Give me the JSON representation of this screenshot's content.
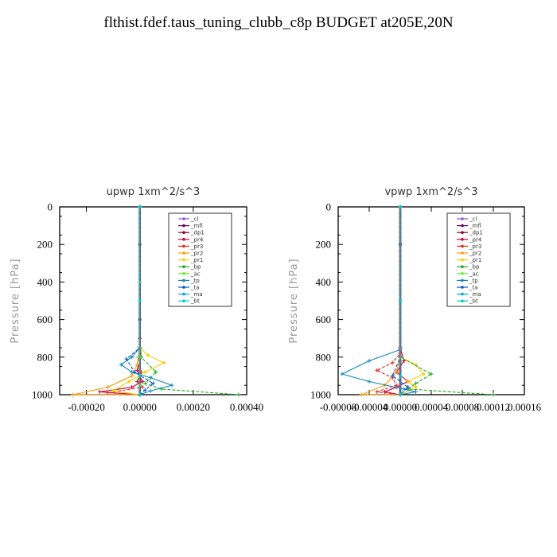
{
  "title": "flthist.fdef.taus_tuning_clubb_c8p  BUDGET at205E,20N",
  "chart_data": [
    {
      "type": "line",
      "title": "upwp   1xm^2/s^3",
      "ylabel": "Pressure [hPa]",
      "ylim": [
        1000,
        0
      ],
      "xlim": [
        -0.0003,
        0.0004
      ],
      "xticks": [
        "-0.00020",
        "0.00000",
        "0.00020",
        "0.00040"
      ],
      "xtick_values": [
        -0.0002,
        0.0,
        0.0002,
        0.0004
      ],
      "yticks": [
        "0",
        "200",
        "400",
        "600",
        "800",
        "1000"
      ],
      "ytick_values": [
        0,
        200,
        400,
        600,
        800,
        1000
      ],
      "legend_position": "top-right",
      "series": [
        {
          "name": "_cl",
          "color": "#9955cc",
          "marker": "circle",
          "x": [
            0,
            0,
            0,
            0,
            0,
            0
          ],
          "y": [
            0,
            200,
            400,
            600,
            800,
            1000
          ]
        },
        {
          "name": "_mfl",
          "color": "#660066",
          "marker": "circle",
          "x": [
            0,
            0,
            0,
            0,
            0,
            0
          ],
          "y": [
            0,
            200,
            400,
            600,
            800,
            1000
          ]
        },
        {
          "name": "_dp1",
          "color": "#880033",
          "marker": "circle",
          "x": [
            0,
            0,
            0,
            0,
            0,
            0
          ],
          "y": [
            0,
            200,
            400,
            600,
            800,
            1000
          ]
        },
        {
          "name": "_pr4",
          "color": "#cc0033",
          "marker": "cross",
          "x": [
            0,
            0,
            5e-06,
            -1e-05,
            1e-05,
            -3e-05,
            -0.00015,
            0
          ],
          "y": [
            0,
            700,
            800,
            870,
            930,
            960,
            985,
            1000
          ]
        },
        {
          "name": "_pr3",
          "color": "#ee2222",
          "marker": "star",
          "x": [
            0,
            0,
            -5e-06,
            5e-06,
            -1e-05,
            1e-05,
            -0.00012,
            0
          ],
          "y": [
            0,
            700,
            800,
            880,
            930,
            960,
            990,
            1000
          ]
        },
        {
          "name": "_pr2",
          "color": "#ff9900",
          "marker": "star",
          "x": [
            0,
            0,
            -1e-05,
            -3e-05,
            -0.00012,
            -0.00025,
            0
          ],
          "y": [
            0,
            750,
            840,
            900,
            960,
            1000,
            1000
          ]
        },
        {
          "name": "_pr1",
          "color": "#ffcc00",
          "marker": "circle",
          "x": [
            0,
            0,
            3e-05,
            9e-05,
            2e-05,
            -4e-05,
            -0.0001,
            0
          ],
          "y": [
            0,
            750,
            790,
            830,
            880,
            930,
            980,
            1000
          ]
        },
        {
          "name": "_bp",
          "color": "#22aa22",
          "marker": "cross",
          "x": [
            0,
            0,
            5e-06,
            6e-05,
            2e-05,
            8e-05,
            0.00037
          ],
          "y": [
            0,
            750,
            800,
            880,
            940,
            970,
            1000
          ]
        },
        {
          "name": "_ac",
          "color": "#66ee33",
          "marker": "circle",
          "x": [
            0,
            0,
            0,
            0,
            0
          ],
          "y": [
            0,
            400,
            800,
            950,
            1000
          ]
        },
        {
          "name": "_tp",
          "color": "#1188bb",
          "marker": "star",
          "x": [
            0,
            0,
            -3e-05,
            -7e-05,
            -3e-05,
            4e-05,
            0.00012,
            4e-05,
            0
          ],
          "y": [
            0,
            750,
            800,
            840,
            880,
            910,
            950,
            980,
            1000
          ]
        },
        {
          "name": "_ta",
          "color": "#0055cc",
          "marker": "star",
          "x": [
            0,
            0,
            -5e-05,
            -2e-05,
            5e-05,
            2e-05,
            0
          ],
          "y": [
            0,
            750,
            810,
            880,
            940,
            975,
            1000
          ]
        },
        {
          "name": "_ma",
          "color": "#00aadd",
          "marker": "dash",
          "x": [
            0,
            0,
            0,
            0
          ],
          "y": [
            0,
            500,
            900,
            1000
          ]
        },
        {
          "name": "_bt",
          "color": "#00cccc",
          "marker": "circle",
          "x": [
            0,
            0,
            0,
            0
          ],
          "y": [
            0,
            500,
            900,
            1000
          ]
        }
      ]
    },
    {
      "type": "line",
      "title": "vpwp   1xm^2/s^3",
      "ylabel": "Pressure [hPa]",
      "ylim": [
        1000,
        0
      ],
      "xlim": [
        -8e-05,
        0.00016
      ],
      "xticks": [
        "-0.00008",
        "-0.00004",
        "0.00000",
        "0.00004",
        "0.00008",
        "0.00012",
        "0.00016"
      ],
      "xtick_values": [
        -8e-05,
        -4e-05,
        0.0,
        4e-05,
        8e-05,
        0.00012,
        0.00016
      ],
      "yticks": [
        "0",
        "200",
        "400",
        "600",
        "800",
        "1000"
      ],
      "ytick_values": [
        0,
        200,
        400,
        600,
        800,
        1000
      ],
      "legend_position": "top-right",
      "series": [
        {
          "name": "_cl",
          "color": "#9955cc",
          "marker": "circle",
          "x": [
            0,
            0,
            0,
            0,
            0
          ],
          "y": [
            0,
            200,
            500,
            800,
            1000
          ]
        },
        {
          "name": "_mfl",
          "color": "#660066",
          "marker": "circle",
          "x": [
            0,
            0,
            0,
            0,
            0
          ],
          "y": [
            0,
            200,
            500,
            800,
            1000
          ]
        },
        {
          "name": "_dp1",
          "color": "#880033",
          "marker": "circle",
          "x": [
            0,
            0,
            0,
            0,
            0
          ],
          "y": [
            0,
            200,
            500,
            800,
            1000
          ]
        },
        {
          "name": "_pr4",
          "color": "#cc0033",
          "marker": "cross",
          "x": [
            0,
            0,
            5e-06,
            -5e-06,
            1e-05,
            -5e-06,
            -2e-05,
            0
          ],
          "y": [
            0,
            750,
            820,
            880,
            930,
            960,
            985,
            1000
          ]
        },
        {
          "name": "_pr3",
          "color": "#ee2222",
          "marker": "star",
          "x": [
            0,
            0,
            -1e-05,
            -3e-05,
            -1e-05,
            -5e-06,
            -3e-05,
            0
          ],
          "y": [
            0,
            780,
            830,
            870,
            910,
            950,
            985,
            1000
          ]
        },
        {
          "name": "_pr2",
          "color": "#ff9900",
          "marker": "star",
          "x": [
            0,
            0,
            -5e-06,
            -2e-05,
            -5e-05,
            0
          ],
          "y": [
            0,
            800,
            880,
            950,
            1000,
            1000
          ]
        },
        {
          "name": "_pr1",
          "color": "#ffcc00",
          "marker": "circle",
          "x": [
            0,
            0,
            2e-05,
            3e-05,
            1e-05,
            2e-05,
            0
          ],
          "y": [
            0,
            800,
            840,
            890,
            930,
            960,
            1000
          ]
        },
        {
          "name": "_bp",
          "color": "#22aa22",
          "marker": "cross",
          "x": [
            0,
            0,
            4e-05,
            2e-05,
            1e-05,
            0.00012
          ],
          "y": [
            0,
            800,
            890,
            940,
            970,
            1000
          ]
        },
        {
          "name": "_ac",
          "color": "#66ee33",
          "marker": "circle",
          "x": [
            0,
            0,
            0,
            0
          ],
          "y": [
            0,
            500,
            900,
            1000
          ]
        },
        {
          "name": "_tp",
          "color": "#1188bb",
          "marker": "star",
          "x": [
            0,
            0,
            -4e-05,
            -7.5e-05,
            -4e-05,
            5e-06,
            2e-05,
            0
          ],
          "y": [
            0,
            760,
            820,
            890,
            930,
            970,
            985,
            1000
          ]
        },
        {
          "name": "_ta",
          "color": "#0055cc",
          "marker": "star",
          "x": [
            0,
            0,
            -1e-05,
            1e-05,
            0
          ],
          "y": [
            0,
            800,
            900,
            960,
            1000
          ]
        },
        {
          "name": "_ma",
          "color": "#00aadd",
          "marker": "dash",
          "x": [
            0,
            0,
            0,
            0
          ],
          "y": [
            0,
            500,
            900,
            1000
          ]
        },
        {
          "name": "_bt",
          "color": "#00cccc",
          "marker": "circle",
          "x": [
            0,
            0,
            0,
            0
          ],
          "y": [
            0,
            500,
            900,
            1000
          ]
        }
      ]
    }
  ]
}
